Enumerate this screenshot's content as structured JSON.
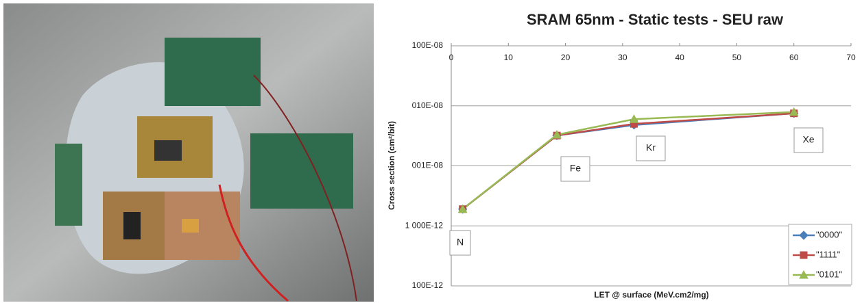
{
  "chart_data": {
    "type": "line",
    "title": "SRAM 65nm - Static tests -  SEU raw",
    "x_label": "LET @ surface (MeV.cm2/mg)",
    "y_label": "Cross section (cm²/bit)",
    "x": [
      2,
      18.5,
      32,
      60
    ],
    "xlim": [
      0,
      70
    ],
    "xticks": [
      0,
      10,
      20,
      30,
      40,
      50,
      60,
      70
    ],
    "ylim": [
      1e-10,
      1e-06
    ],
    "log_y": true,
    "grid": true,
    "yticks": [
      {
        "value": 1e-10,
        "label": "100E-12"
      },
      {
        "value": 1e-09,
        "label": "1 000E-12"
      },
      {
        "value": 1e-08,
        "label": "001E-08"
      },
      {
        "value": 1e-07,
        "label": "010E-08"
      },
      {
        "value": 1e-06,
        "label": "100E-08"
      }
    ],
    "legend": "bottom-right",
    "annotations": [
      "N",
      "Fe",
      "Kr",
      "Xe"
    ],
    "series": [
      {
        "name": "\"0000\"",
        "color": "#4a7ebb",
        "marker": "diamond",
        "values": [
          1.9e-09,
          3.2e-08,
          4.8e-08,
          7.5e-08
        ]
      },
      {
        "name": "\"1111\"",
        "color": "#be4b48",
        "marker": "square",
        "values": [
          1.9e-09,
          3.2e-08,
          5e-08,
          7.5e-08
        ]
      },
      {
        "name": "\"0101\"",
        "color": "#98b954",
        "marker": "triangle",
        "values": [
          1.9e-09,
          3.3e-08,
          6e-08,
          7.9e-08
        ]
      }
    ]
  }
}
